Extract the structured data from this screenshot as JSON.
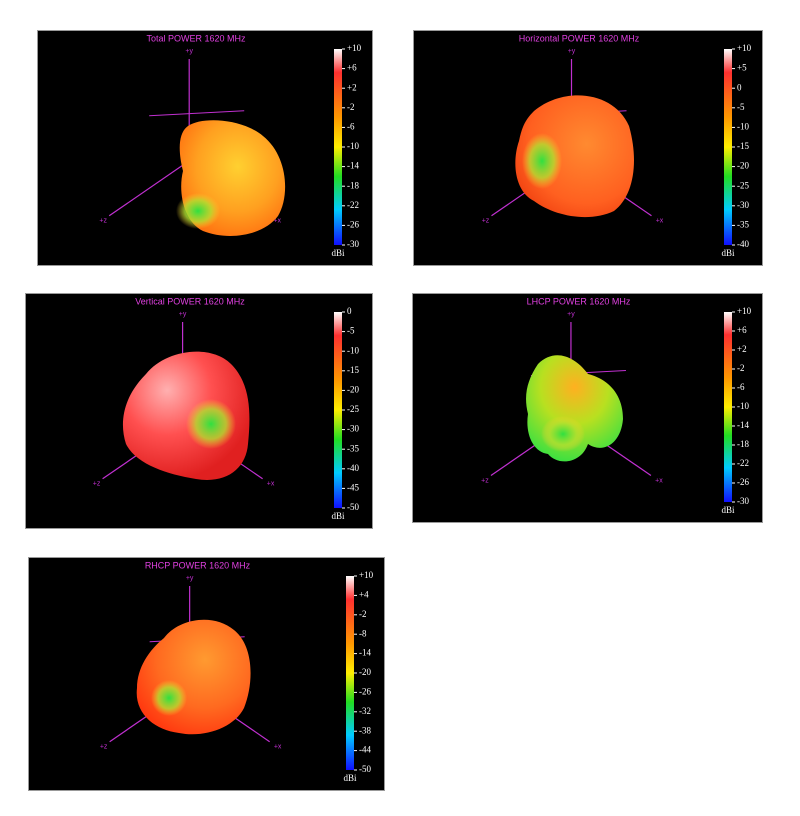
{
  "panels": [
    {
      "title": "Total POWER 1620  MHz",
      "unit": "dBi",
      "axis_labels": {
        "y": "+y",
        "x": "+x",
        "z": "+z"
      },
      "colorbar_ticks": [
        {
          "value": 10,
          "label": "+10"
        },
        {
          "value": 6,
          "label": "+6"
        },
        {
          "value": 2,
          "label": "+2"
        },
        -2,
        -6,
        -10,
        -14,
        -18,
        -22,
        -26,
        -30
      ]
    },
    {
      "title": "Horizontal POWER 1620  MHz",
      "unit": "dBi",
      "axis_labels": {
        "y": "+y",
        "x": "+x",
        "z": "+z"
      },
      "colorbar_ticks": [
        {
          "value": 10,
          "label": "+10"
        },
        {
          "value": 5,
          "label": "+5"
        },
        0,
        -5,
        -10,
        -15,
        -20,
        -25,
        -30,
        -35,
        -40
      ]
    },
    {
      "title": "Vertical POWER 1620  MHz",
      "unit": "dBi",
      "axis_labels": {
        "y": "+y",
        "x": "+x",
        "z": "+z"
      },
      "colorbar_ticks": [
        0,
        -5,
        -10,
        -15,
        -20,
        -25,
        -30,
        -35,
        -40,
        -45,
        -50
      ]
    },
    {
      "title": "LHCP POWER 1620  MHz",
      "unit": "dBi",
      "axis_labels": {
        "y": "+y",
        "x": "+x",
        "z": "+z"
      },
      "colorbar_ticks": [
        {
          "value": 10,
          "label": "+10"
        },
        {
          "value": 6,
          "label": "+6"
        },
        {
          "value": 2,
          "label": "+2"
        },
        -2,
        -6,
        -10,
        -14,
        -18,
        -22,
        -26,
        -30
      ]
    },
    {
      "title": "RHCP POWER 1620  MHz",
      "unit": "dBi",
      "axis_labels": {
        "y": "+y",
        "x": "+x",
        "z": "+z"
      },
      "colorbar_ticks": [
        {
          "value": 10,
          "label": "+10"
        },
        {
          "value": 4,
          "label": "+4"
        },
        -2,
        -8,
        -14,
        -20,
        -26,
        -32,
        -38,
        -44,
        -50
      ]
    }
  ]
}
